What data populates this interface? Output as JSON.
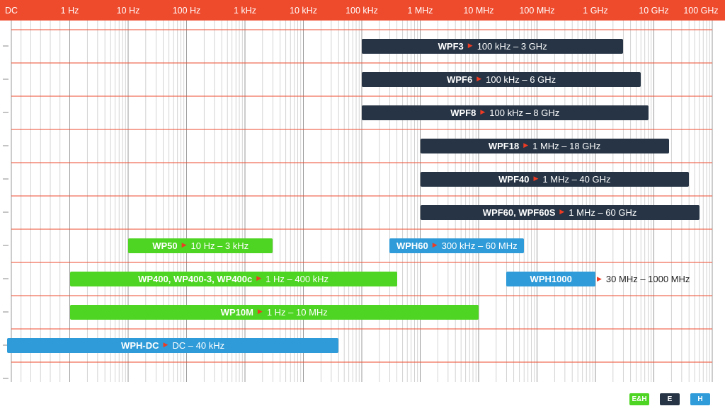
{
  "chart_data": {
    "type": "range-bar",
    "x_scale": "log",
    "x_ticks": [
      "DC",
      "1 Hz",
      "10 Hz",
      "100 Hz",
      "1 kHz",
      "10 kHz",
      "100 kHz",
      "1 MHz",
      "10 MHz",
      "100 MHz",
      "1 GHz",
      "10 GHz",
      "100 GHz"
    ],
    "x_tick_hz": [
      0,
      1,
      10,
      100,
      1000,
      10000,
      100000,
      1000000,
      10000000,
      100000000,
      1000000000,
      10000000000,
      100000000000
    ],
    "grid": true,
    "colors": {
      "E&H": "#4ed422",
      "E": "#263445",
      "H": "#2f9bd8",
      "grid_major": "#ee4a2c",
      "grid_minor": "#c8c8c8"
    },
    "bars": [
      {
        "name": "WPF3",
        "range": "100 kHz – 3 GHz",
        "type": "E",
        "start_hz": 100000,
        "end_hz": 3000000000
      },
      {
        "name": "WPF6",
        "range": "100 kHz – 6 GHz",
        "type": "E",
        "start_hz": 100000,
        "end_hz": 6000000000
      },
      {
        "name": "WPF8",
        "range": "100 kHz – 8 GHz",
        "type": "E",
        "start_hz": 100000,
        "end_hz": 8000000000
      },
      {
        "name": "WPF18",
        "range": "1 MHz – 18 GHz",
        "type": "E",
        "start_hz": 1000000,
        "end_hz": 18000000000
      },
      {
        "name": "WPF40",
        "range": "1 MHz – 40 GHz",
        "type": "E",
        "start_hz": 1000000,
        "end_hz": 40000000000
      },
      {
        "name": "WPF60, WPF60S",
        "range": "1 MHz – 60 GHz",
        "type": "E",
        "start_hz": 1000000,
        "end_hz": 60000000000
      },
      {
        "name": "WP50",
        "range": "10 Hz – 3 kHz",
        "type": "E&H",
        "start_hz": 10,
        "end_hz": 3000
      },
      {
        "name": "WPH60",
        "range": "300 kHz – 60 MHz",
        "type": "H",
        "start_hz": 300000,
        "end_hz": 60000000
      },
      {
        "name": "WP400, WP400-3, WP400c",
        "range": "1 Hz – 400 kHz",
        "type": "E&H",
        "start_hz": 1,
        "end_hz": 400000
      },
      {
        "name": "WPH1000",
        "range": "30 MHz – 1000 MHz",
        "type": "H",
        "start_hz": 30000000,
        "end_hz": 1000000000
      },
      {
        "name": "WP10M",
        "range": "1 Hz – 10 MHz",
        "type": "E&H",
        "start_hz": 1,
        "end_hz": 10000000
      },
      {
        "name": "WPH-DC",
        "range": "DC – 40 kHz",
        "type": "H",
        "start_hz": 0,
        "end_hz": 40000
      }
    ]
  },
  "legend": [
    {
      "label": "E&H",
      "color": "#4ed422"
    },
    {
      "label": "E",
      "color": "#263445"
    },
    {
      "label": "H",
      "color": "#2f9bd8"
    }
  ]
}
